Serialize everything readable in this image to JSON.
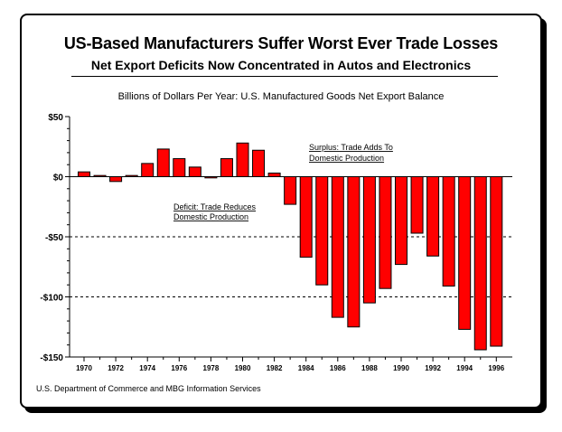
{
  "header": {
    "title": "US-Based Manufacturers Suffer Worst Ever Trade Losses",
    "subtitle": "Net Export Deficits Now Concentrated in Autos and Electronics"
  },
  "chart_description": "Billions of Dollars Per Year: U.S. Manufactured Goods Net Export Balance",
  "source": "U.S. Department of Commerce and MBG Information Services",
  "colors": {
    "bar": "#ff0000",
    "outline": "#000000",
    "background": "#ffffff"
  },
  "chart_data": {
    "type": "bar",
    "x": [
      1970,
      1971,
      1972,
      1973,
      1974,
      1975,
      1976,
      1977,
      1978,
      1979,
      1980,
      1981,
      1982,
      1983,
      1984,
      1985,
      1986,
      1987,
      1988,
      1989,
      1990,
      1991,
      1992,
      1993,
      1994,
      1995,
      1996
    ],
    "values": [
      4,
      1,
      -4,
      1,
      11,
      23,
      15,
      8,
      -1,
      15,
      28,
      22,
      3,
      -23,
      -67,
      -90,
      -117,
      -125,
      -105,
      -93,
      -73,
      -47,
      -66,
      -91,
      -127,
      -144,
      -141
    ],
    "xticks": [
      "1970",
      "1972",
      "1974",
      "1976",
      "1978",
      "1980",
      "1982",
      "1984",
      "1986",
      "1988",
      "1990",
      "1992",
      "1994",
      "1996"
    ],
    "yticks": [
      {
        "value": 50,
        "label": "$50"
      },
      {
        "value": 0,
        "label": "$0"
      },
      {
        "value": -50,
        "label": "-$50"
      },
      {
        "value": -100,
        "label": "-$100"
      },
      {
        "value": -150,
        "label": "-$150"
      }
    ],
    "ylim": [
      -150,
      50
    ],
    "gridlines": [
      -50,
      -100
    ],
    "annotations": {
      "surplus": [
        "Surplus: Trade Adds To",
        "Domestic Production"
      ],
      "deficit": [
        "Deficit: Trade Reduces",
        "Domestic Production"
      ]
    }
  }
}
